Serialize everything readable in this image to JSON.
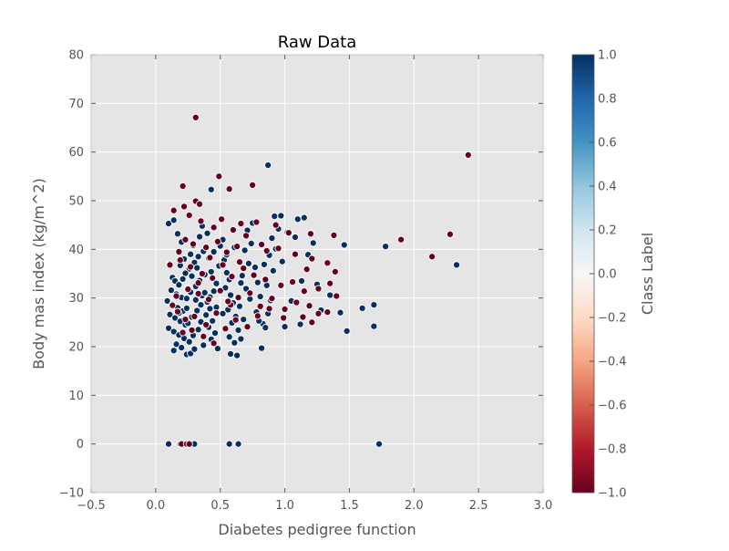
{
  "chart_data": {
    "type": "scatter",
    "title": "Raw Data",
    "xlabel": "Diabetes pedigree function",
    "ylabel": "Body mas index (kg/m^2)",
    "xlim": [
      -0.5,
      3.0
    ],
    "ylim": [
      -10,
      80
    ],
    "xticks": [
      "−0.5",
      "0.0",
      "0.5",
      "1.0",
      "1.5",
      "2.0",
      "2.5",
      "3.0"
    ],
    "yticks": [
      "−10",
      "0",
      "10",
      "20",
      "30",
      "40",
      "50",
      "60",
      "70",
      "80"
    ],
    "grid": true,
    "background_color": "#e5e5e5",
    "colorbar": {
      "label": "Class Label",
      "range": [
        -1.0,
        1.0
      ],
      "ticks": [
        "−1.0",
        "−0.8",
        "−0.6",
        "−0.4",
        "−0.2",
        "0.0",
        "0.2",
        "0.4",
        "0.6",
        "0.8",
        "1.0"
      ],
      "colormap": "RdBu",
      "color_stops": [
        "#67001f",
        "#b2182b",
        "#d6604d",
        "#f4a582",
        "#fddbc7",
        "#f7f7f7",
        "#d1e5f0",
        "#92c5de",
        "#4393c3",
        "#2166ac",
        "#053061"
      ]
    },
    "series": [
      {
        "class": 1,
        "color": "#053061",
        "points": [
          [
            0.1,
            45.3
          ],
          [
            0.14,
            46.0
          ],
          [
            0.17,
            43.2
          ],
          [
            0.11,
            37.0
          ],
          [
            0.13,
            34.2
          ],
          [
            0.15,
            33.5
          ],
          [
            0.18,
            32.7
          ],
          [
            0.12,
            31.6
          ],
          [
            0.16,
            30.8
          ],
          [
            0.2,
            30.1
          ],
          [
            0.09,
            29.4
          ],
          [
            0.13,
            28.7
          ],
          [
            0.17,
            28.0
          ],
          [
            0.21,
            27.3
          ],
          [
            0.11,
            26.6
          ],
          [
            0.15,
            25.9
          ],
          [
            0.19,
            25.2
          ],
          [
            0.23,
            24.5
          ],
          [
            0.1,
            23.8
          ],
          [
            0.14,
            23.1
          ],
          [
            0.18,
            22.4
          ],
          [
            0.22,
            21.7
          ],
          [
            0.16,
            20.5
          ],
          [
            0.2,
            19.8
          ],
          [
            0.14,
            19.2
          ],
          [
            0.24,
            18.4
          ],
          [
            0.27,
            18.6
          ],
          [
            0.3,
            19.5
          ],
          [
            0.26,
            21.0
          ],
          [
            0.29,
            22.3
          ],
          [
            0.33,
            23.5
          ],
          [
            0.25,
            24.8
          ],
          [
            0.28,
            26.1
          ],
          [
            0.32,
            27.4
          ],
          [
            0.35,
            28.6
          ],
          [
            0.24,
            29.9
          ],
          [
            0.27,
            31.2
          ],
          [
            0.31,
            32.4
          ],
          [
            0.34,
            33.6
          ],
          [
            0.38,
            34.8
          ],
          [
            0.26,
            36.0
          ],
          [
            0.3,
            37.3
          ],
          [
            0.33,
            38.5
          ],
          [
            0.37,
            39.6
          ],
          [
            0.29,
            40.8
          ],
          [
            0.22,
            38.0
          ],
          [
            0.19,
            36.7
          ],
          [
            0.23,
            35.1
          ],
          [
            0.21,
            33.9
          ],
          [
            0.25,
            32.0
          ],
          [
            0.36,
            30.5
          ],
          [
            0.4,
            29.2
          ],
          [
            0.42,
            27.8
          ],
          [
            0.39,
            26.5
          ],
          [
            0.44,
            25.3
          ],
          [
            0.41,
            24.0
          ],
          [
            0.46,
            22.8
          ],
          [
            0.43,
            21.5
          ],
          [
            0.37,
            20.3
          ],
          [
            0.48,
            19.6
          ],
          [
            0.45,
            31.4
          ],
          [
            0.47,
            33.0
          ],
          [
            0.43,
            35.4
          ],
          [
            0.49,
            36.6
          ],
          [
            0.41,
            38.2
          ],
          [
            0.45,
            39.5
          ],
          [
            0.5,
            40.7
          ],
          [
            0.52,
            42.0
          ],
          [
            0.4,
            43.3
          ],
          [
            0.34,
            42.6
          ],
          [
            0.36,
            44.8
          ],
          [
            0.43,
            52.3
          ],
          [
            0.53,
            37.8
          ],
          [
            0.55,
            35.2
          ],
          [
            0.57,
            33.8
          ],
          [
            0.54,
            32.1
          ],
          [
            0.58,
            30.6
          ],
          [
            0.6,
            29.0
          ],
          [
            0.56,
            27.6
          ],
          [
            0.62,
            26.2
          ],
          [
            0.59,
            24.9
          ],
          [
            0.64,
            23.4
          ],
          [
            0.57,
            22.0
          ],
          [
            0.61,
            20.8
          ],
          [
            0.58,
            18.5
          ],
          [
            0.63,
            18.2
          ],
          [
            0.66,
            21.6
          ],
          [
            0.68,
            25.6
          ],
          [
            0.65,
            28.3
          ],
          [
            0.7,
            31.9
          ],
          [
            0.67,
            34.6
          ],
          [
            0.72,
            37.1
          ],
          [
            0.69,
            39.8
          ],
          [
            0.74,
            41.2
          ],
          [
            0.71,
            43.9
          ],
          [
            0.75,
            45.4
          ],
          [
            0.77,
            36.3
          ],
          [
            0.79,
            33.2
          ],
          [
            0.81,
            30.3
          ],
          [
            0.78,
            27.1
          ],
          [
            0.83,
            24.7
          ],
          [
            0.85,
            23.9
          ],
          [
            0.82,
            19.7
          ],
          [
            0.87,
            26.8
          ],
          [
            0.89,
            29.5
          ],
          [
            0.86,
            32.6
          ],
          [
            0.91,
            35.6
          ],
          [
            0.88,
            38.8
          ],
          [
            0.93,
            40.1
          ],
          [
            0.9,
            42.3
          ],
          [
            0.95,
            44.2
          ],
          [
            0.92,
            46.8
          ],
          [
            0.87,
            57.3
          ],
          [
            0.97,
            46.9
          ],
          [
            0.98,
            37.5
          ],
          [
            1.0,
            24.1
          ],
          [
            1.02,
            43.5
          ],
          [
            1.05,
            29.4
          ],
          [
            1.08,
            42.5
          ],
          [
            1.1,
            46.2
          ],
          [
            1.13,
            33.5
          ],
          [
            1.15,
            46.5
          ],
          [
            1.12,
            24.6
          ],
          [
            1.18,
            38.9
          ],
          [
            1.22,
            41.3
          ],
          [
            1.25,
            32.8
          ],
          [
            1.28,
            27.5
          ],
          [
            1.35,
            30.6
          ],
          [
            1.43,
            27.0
          ],
          [
            1.46,
            40.9
          ],
          [
            1.48,
            23.2
          ],
          [
            1.6,
            27.9
          ],
          [
            1.69,
            28.6
          ],
          [
            1.69,
            24.2
          ],
          [
            1.78,
            40.6
          ],
          [
            2.33,
            36.8
          ],
          [
            0.1,
            0.0
          ],
          [
            0.19,
            0.0
          ],
          [
            0.3,
            0.0
          ],
          [
            0.57,
            0.0
          ],
          [
            0.64,
            0.0
          ],
          [
            1.73,
            0.0
          ],
          [
            0.42,
            30.2
          ],
          [
            0.35,
            25.1
          ],
          [
            0.28,
            34.5
          ],
          [
            0.18,
            26.9
          ],
          [
            0.24,
            27.9
          ],
          [
            0.31,
            29.6
          ],
          [
            0.38,
            31.1
          ],
          [
            0.47,
            28.1
          ],
          [
            0.52,
            26.8
          ],
          [
            0.55,
            38.9
          ],
          [
            0.61,
            40.4
          ],
          [
            0.66,
            33.1
          ],
          [
            0.73,
            29.8
          ],
          [
            0.8,
            25.3
          ],
          [
            0.84,
            36.9
          ],
          [
            0.2,
            41.5
          ],
          [
            0.27,
            39.0
          ],
          [
            0.32,
            36.2
          ]
        ]
      },
      {
        "class": -1,
        "color": "#67001f",
        "points": [
          [
            0.31,
            67.1
          ],
          [
            2.42,
            59.4
          ],
          [
            0.49,
            55.0
          ],
          [
            0.57,
            52.4
          ],
          [
            0.75,
            53.2
          ],
          [
            0.21,
            53.0
          ],
          [
            0.31,
            49.9
          ],
          [
            0.34,
            49.3
          ],
          [
            0.14,
            48.0
          ],
          [
            0.22,
            48.8
          ],
          [
            0.26,
            47.0
          ],
          [
            0.35,
            45.8
          ],
          [
            0.45,
            44.5
          ],
          [
            0.51,
            46.2
          ],
          [
            0.6,
            44.0
          ],
          [
            0.66,
            45.3
          ],
          [
            0.78,
            45.6
          ],
          [
            0.93,
            45.0
          ],
          [
            1.03,
            43.4
          ],
          [
            1.2,
            43.2
          ],
          [
            1.38,
            42.9
          ],
          [
            1.9,
            42.0
          ],
          [
            2.28,
            43.1
          ],
          [
            2.14,
            38.5
          ],
          [
            0.23,
            42.0
          ],
          [
            0.29,
            41.1
          ],
          [
            0.39,
            40.4
          ],
          [
            0.48,
            41.6
          ],
          [
            0.55,
            39.4
          ],
          [
            0.63,
            40.6
          ],
          [
            0.7,
            42.8
          ],
          [
            0.82,
            41.0
          ],
          [
            0.95,
            40.2
          ],
          [
            1.08,
            39.0
          ],
          [
            1.21,
            38.1
          ],
          [
            1.33,
            37.2
          ],
          [
            1.39,
            35.4
          ],
          [
            0.19,
            37.8
          ],
          [
            0.27,
            36.4
          ],
          [
            0.36,
            35.0
          ],
          [
            0.44,
            34.1
          ],
          [
            0.52,
            36.8
          ],
          [
            0.59,
            34.4
          ],
          [
            0.68,
            36.1
          ],
          [
            0.76,
            34.7
          ],
          [
            0.85,
            33.8
          ],
          [
            0.97,
            32.6
          ],
          [
            1.06,
            33.3
          ],
          [
            1.15,
            31.4
          ],
          [
            1.26,
            31.9
          ],
          [
            1.35,
            33.0
          ],
          [
            0.16,
            30.4
          ],
          [
            0.25,
            31.8
          ],
          [
            0.33,
            30.9
          ],
          [
            0.41,
            29.7
          ],
          [
            0.5,
            31.5
          ],
          [
            0.58,
            28.6
          ],
          [
            0.64,
            30.1
          ],
          [
            0.73,
            31.0
          ],
          [
            0.81,
            28.3
          ],
          [
            0.9,
            29.9
          ],
          [
            1.0,
            27.7
          ],
          [
            1.09,
            29.1
          ],
          [
            1.19,
            28.4
          ],
          [
            1.26,
            26.8
          ],
          [
            1.33,
            27.1
          ],
          [
            1.4,
            30.4
          ],
          [
            0.17,
            27.2
          ],
          [
            0.23,
            25.6
          ],
          [
            0.3,
            26.2
          ],
          [
            0.39,
            24.5
          ],
          [
            0.47,
            26.9
          ],
          [
            0.54,
            23.7
          ],
          [
            0.62,
            25.5
          ],
          [
            0.71,
            24.1
          ],
          [
            0.79,
            26.3
          ],
          [
            0.88,
            27.8
          ],
          [
            0.99,
            25.9
          ],
          [
            1.14,
            26.1
          ],
          [
            1.21,
            25.0
          ],
          [
            0.13,
            28.5
          ],
          [
            0.28,
            23.4
          ],
          [
            0.37,
            22.1
          ],
          [
            0.45,
            20.7
          ],
          [
            0.11,
            36.8
          ],
          [
            0.18,
            39.5
          ],
          [
            0.42,
            38.3
          ],
          [
            0.65,
            37.4
          ],
          [
            0.86,
            39.7
          ],
          [
            1.17,
            35.9
          ],
          [
            0.2,
            0.0
          ],
          [
            0.24,
            0.0
          ],
          [
            0.26,
            0.0
          ],
          [
            0.33,
            33.1
          ],
          [
            0.21,
            22.9
          ],
          [
            0.56,
            29.3
          ]
        ]
      }
    ]
  }
}
